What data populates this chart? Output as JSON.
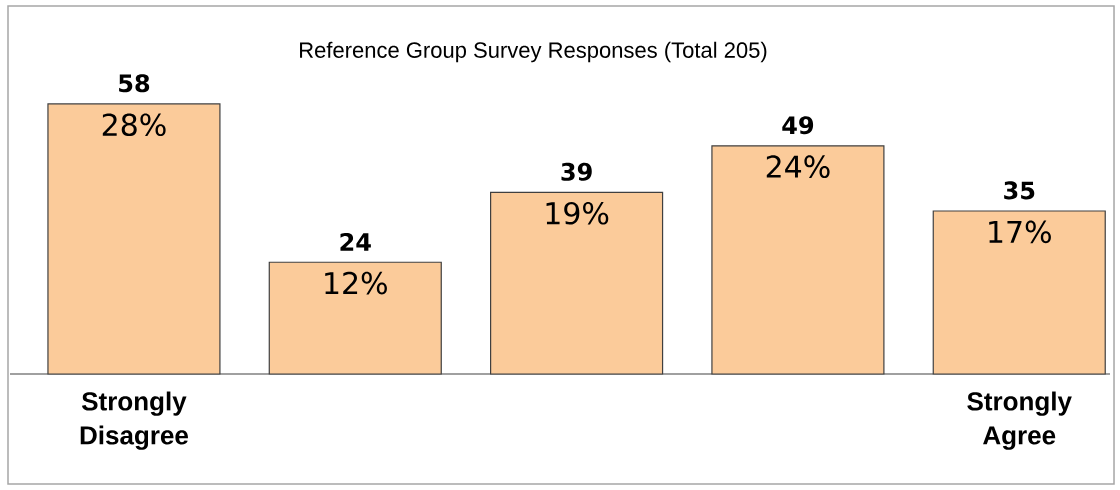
{
  "chart_data": {
    "type": "bar",
    "title": "Reference Group Survey Responses (Total 205)",
    "categories": [
      "Strongly Disagree",
      null,
      null,
      null,
      "Strongly Agree"
    ],
    "values": [
      58,
      24,
      39,
      49,
      35
    ],
    "color": "#fbcb9a",
    "data_labels": true,
    "annotations": [
      {
        "text": "28%",
        "y": 58
      },
      {
        "text": "12%",
        "y": 24
      },
      {
        "text": "19%",
        "y": 39
      },
      {
        "text": "24%",
        "y": 49
      },
      {
        "text": "17%",
        "y": 35
      }
    ]
  }
}
